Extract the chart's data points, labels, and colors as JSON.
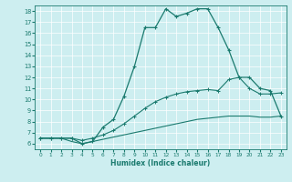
{
  "xlabel": "Humidex (Indice chaleur)",
  "bg_color": "#cdeef0",
  "line_color": "#1a7a6e",
  "grid_color": "#b0d8d8",
  "xlim": [
    -0.5,
    23.5
  ],
  "ylim": [
    5.5,
    18.5
  ],
  "yticks": [
    6,
    7,
    8,
    9,
    10,
    11,
    12,
    13,
    14,
    15,
    16,
    17,
    18
  ],
  "xticks": [
    0,
    1,
    2,
    3,
    4,
    5,
    6,
    7,
    8,
    9,
    10,
    11,
    12,
    13,
    14,
    15,
    16,
    17,
    18,
    19,
    20,
    21,
    22,
    23
  ],
  "line1_x": [
    0,
    1,
    2,
    3,
    4,
    5,
    6,
    7,
    8,
    9,
    10,
    11,
    12,
    13,
    14,
    15,
    16,
    17,
    18,
    19,
    20,
    21,
    22,
    23
  ],
  "line1_y": [
    6.5,
    6.5,
    6.5,
    6.2,
    6.0,
    6.2,
    6.4,
    6.6,
    6.8,
    7.0,
    7.2,
    7.4,
    7.6,
    7.8,
    8.0,
    8.2,
    8.3,
    8.4,
    8.5,
    8.5,
    8.5,
    8.4,
    8.4,
    8.5
  ],
  "line2_x": [
    0,
    1,
    2,
    3,
    4,
    5,
    6,
    7,
    8,
    9,
    10,
    11,
    12,
    13,
    14,
    15,
    16,
    17,
    18,
    19,
    20,
    21,
    22,
    23
  ],
  "line2_y": [
    6.5,
    6.5,
    6.5,
    6.5,
    6.3,
    6.5,
    6.8,
    7.2,
    7.8,
    8.5,
    9.2,
    9.8,
    10.2,
    10.5,
    10.7,
    10.8,
    10.9,
    10.8,
    11.8,
    12.0,
    11.0,
    10.5,
    10.5,
    10.6
  ],
  "line3_x": [
    0,
    1,
    2,
    3,
    4,
    5,
    6,
    7,
    8,
    9,
    10,
    11,
    12,
    13,
    14,
    15,
    16,
    17,
    18,
    19,
    20,
    21,
    22,
    23
  ],
  "line3_y": [
    6.5,
    6.5,
    6.5,
    6.5,
    6.0,
    6.2,
    7.5,
    8.2,
    10.3,
    13.0,
    16.5,
    16.5,
    18.2,
    17.5,
    17.8,
    18.2,
    18.2,
    16.5,
    14.5,
    12.0,
    12.0,
    11.0,
    10.8,
    8.5
  ]
}
